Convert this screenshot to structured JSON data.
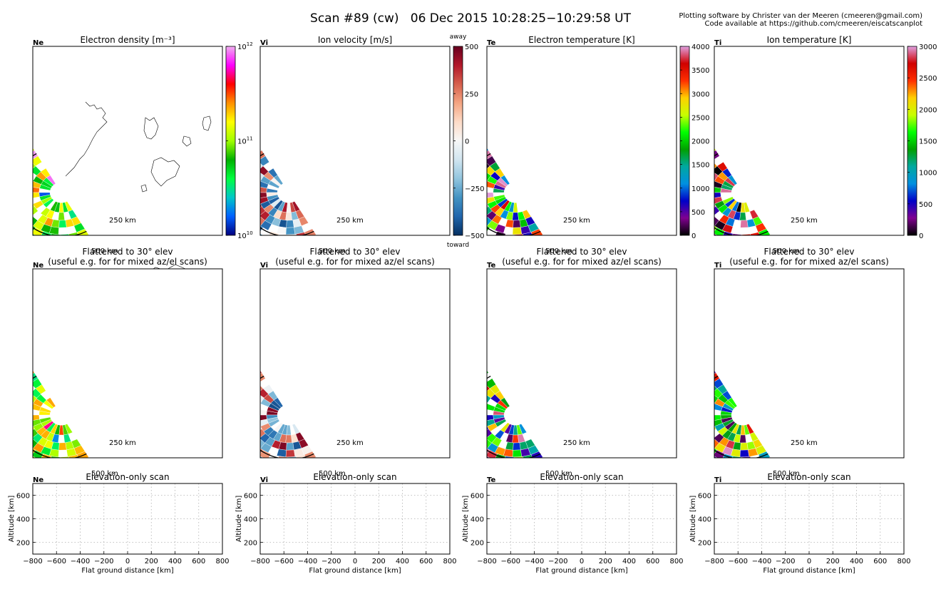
{
  "header": {
    "title": "Scan #89 (cw)   06 Dec 2015 10:28:25−10:29:58 UT",
    "credit_line1": "Plotting software by Christer van der Meeren (cmeeren@gmail.com)",
    "credit_line2": "Code available at https://github.com/cmeeren/eiscatscanplot"
  },
  "colors": {
    "vi_away": "#67001f",
    "vi_toward": "#053061",
    "coast": "#000000",
    "grid": "#b0b0b0"
  },
  "panels": [
    {
      "id": "ne",
      "tag": "Ne",
      "map_title": "Electron density [m⁻³]",
      "colormap": "gist_ncar",
      "colorbar": {
        "scale": "log",
        "min": 10,
        "max": 12,
        "tick_labels": [
          {
            "base": "10",
            "exp": "12",
            "value": 12
          },
          {
            "base": "10",
            "exp": "11",
            "value": 11
          },
          {
            "base": "10",
            "exp": "10",
            "value": 10
          }
        ]
      }
    },
    {
      "id": "vi",
      "tag": "Vi",
      "map_title": "Ion velocity [m/s]",
      "colormap": "RdBu_r",
      "colorbar": {
        "scale": "linear",
        "min": -500,
        "max": 500,
        "top_label": "away",
        "bottom_label": "toward",
        "tick_labels": [
          {
            "text": "500",
            "value": 500
          },
          {
            "text": "250",
            "value": 250
          },
          {
            "text": "0",
            "value": 0
          },
          {
            "text": "−250",
            "value": -250
          },
          {
            "text": "−500",
            "value": -500
          }
        ]
      }
    },
    {
      "id": "te",
      "tag": "Te",
      "map_title": "Electron temperature [K]",
      "colormap": "nipy_spectral",
      "colorbar": {
        "scale": "linear",
        "min": 0,
        "max": 4000,
        "tick_labels": [
          {
            "text": "4000",
            "value": 4000
          },
          {
            "text": "3500",
            "value": 3500
          },
          {
            "text": "3000",
            "value": 3000
          },
          {
            "text": "2500",
            "value": 2500
          },
          {
            "text": "2000",
            "value": 2000
          },
          {
            "text": "1500",
            "value": 1500
          },
          {
            "text": "1000",
            "value": 1000
          },
          {
            "text": "500",
            "value": 500
          },
          {
            "text": "0",
            "value": 0
          }
        ]
      }
    },
    {
      "id": "ti",
      "tag": "Ti",
      "map_title": "Ion temperature [K]",
      "colormap": "nipy_spectral",
      "colorbar": {
        "scale": "linear",
        "min": 0,
        "max": 3000,
        "tick_labels": [
          {
            "text": "3000",
            "value": 3000
          },
          {
            "text": "2500",
            "value": 2500
          },
          {
            "text": "2000",
            "value": 2000
          },
          {
            "text": "1500",
            "value": 1500
          },
          {
            "text": "1000",
            "value": 1000
          },
          {
            "text": "500",
            "value": 500
          },
          {
            "text": "0",
            "value": 0
          }
        ]
      }
    }
  ],
  "flattened": {
    "title_line1": "Flattened to 30° elev",
    "title_line2": "(useful e.g. for for mixed az/el scans)"
  },
  "range_rings": [
    "250 km",
    "500 km"
  ],
  "elevation_scan": {
    "title": "Elevation-only scan",
    "xlabel": "Flat ground distance [km]",
    "ylabel": "Altitude [km]",
    "xlim": [
      -800,
      800
    ],
    "ylim": [
      100,
      700
    ],
    "grid": true,
    "x_ticks": [
      "−800",
      "−600",
      "−400",
      "−200",
      "0",
      "200",
      "400",
      "600",
      "800"
    ],
    "y_ticks": [
      "200",
      "400",
      "600"
    ],
    "x_tick_values": [
      -800,
      -600,
      -400,
      -200,
      0,
      200,
      400,
      600,
      800
    ],
    "y_tick_values": [
      200,
      400,
      600
    ]
  },
  "chart_data": [
    {
      "type": "heatmap",
      "title": "Electron density [m⁻³]",
      "scan": "azimuth scan, map projection",
      "clim": [
        10000000000.0,
        1000000000000.0
      ],
      "scale": "log"
    },
    {
      "type": "heatmap",
      "title": "Ion velocity [m/s]",
      "scan": "azimuth scan, map projection",
      "clim": [
        -500,
        500
      ]
    },
    {
      "type": "heatmap",
      "title": "Electron temperature [K]",
      "scan": "azimuth scan, map projection",
      "clim": [
        0,
        4000
      ]
    },
    {
      "type": "heatmap",
      "title": "Ion temperature [K]",
      "scan": "azimuth scan, map projection",
      "clim": [
        0,
        3000
      ]
    },
    {
      "type": "scatter",
      "title": "Elevation-only scan",
      "xlabel": "Flat ground distance [km]",
      "ylabel": "Altitude [km]",
      "xlim": [
        -800,
        800
      ],
      "ylim": [
        100,
        700
      ],
      "series": []
    }
  ]
}
